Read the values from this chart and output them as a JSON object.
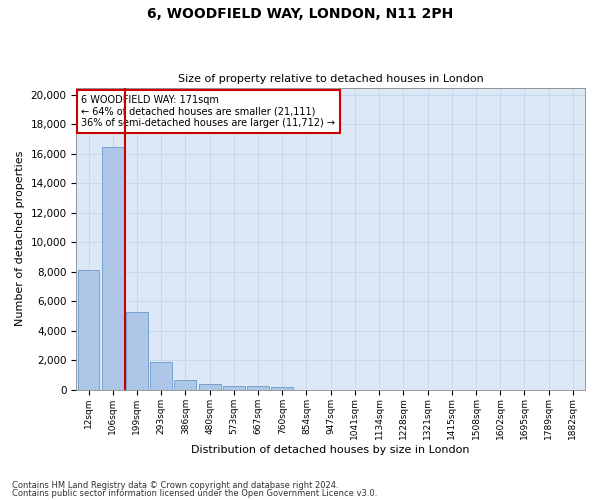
{
  "title1": "6, WOODFIELD WAY, LONDON, N11 2PH",
  "title2": "Size of property relative to detached houses in London",
  "xlabel": "Distribution of detached houses by size in London",
  "ylabel": "Number of detached properties",
  "categories": [
    "12sqm",
    "106sqm",
    "199sqm",
    "293sqm",
    "386sqm",
    "480sqm",
    "573sqm",
    "667sqm",
    "760sqm",
    "854sqm",
    "947sqm",
    "1041sqm",
    "1134sqm",
    "1228sqm",
    "1321sqm",
    "1415sqm",
    "1508sqm",
    "1602sqm",
    "1695sqm",
    "1789sqm",
    "1882sqm"
  ],
  "values": [
    8100,
    16500,
    5300,
    1850,
    680,
    370,
    280,
    220,
    190,
    0,
    0,
    0,
    0,
    0,
    0,
    0,
    0,
    0,
    0,
    0,
    0
  ],
  "bar_color": "#aec6e8",
  "bar_edge_color": "#5a8fc2",
  "vline_x": 1.5,
  "annotation_title": "6 WOODFIELD WAY: 171sqm",
  "annotation_line1": "← 64% of detached houses are smaller (21,111)",
  "annotation_line2": "36% of semi-detached houses are larger (11,712) →",
  "annotation_box_color": "#ffffff",
  "annotation_box_edge": "#cc0000",
  "vline_color": "#cc0000",
  "grid_color": "#c8d8ec",
  "background_color": "#dce8f5",
  "ylim": [
    0,
    20500
  ],
  "yticks": [
    0,
    2000,
    4000,
    6000,
    8000,
    10000,
    12000,
    14000,
    16000,
    18000,
    20000
  ],
  "footer1": "Contains HM Land Registry data © Crown copyright and database right 2024.",
  "footer2": "Contains public sector information licensed under the Open Government Licence v3.0."
}
